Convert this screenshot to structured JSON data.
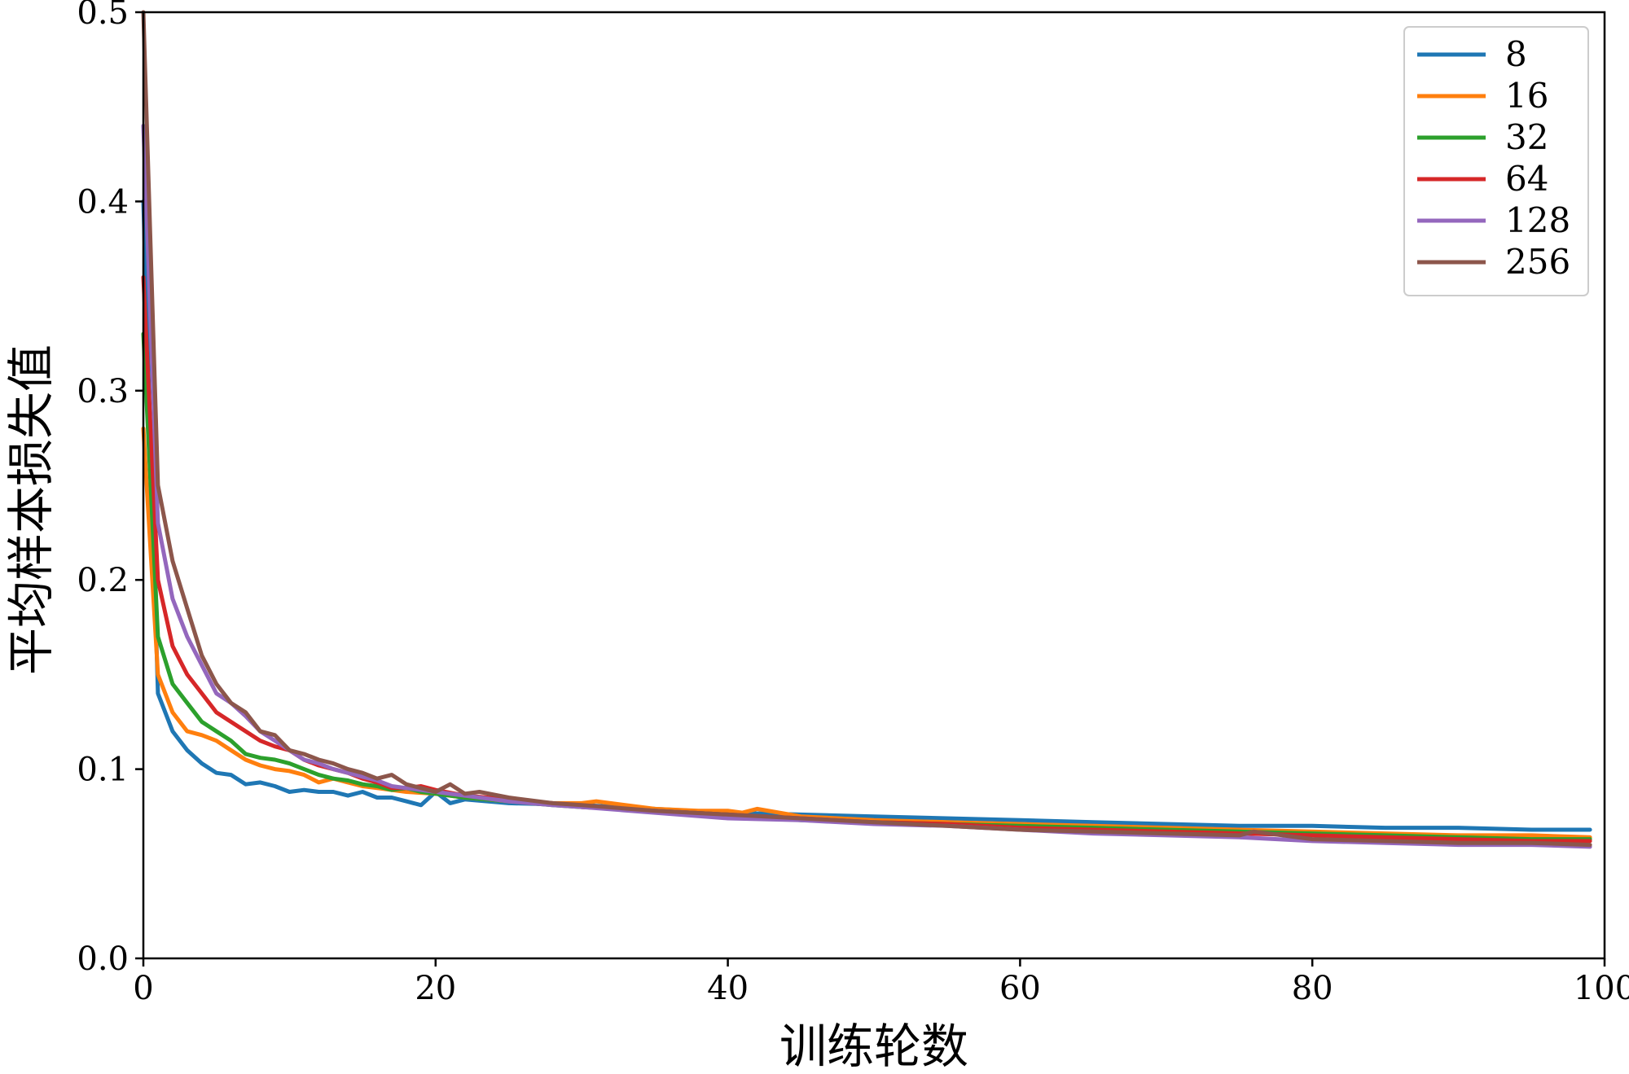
{
  "chart_data": {
    "type": "line",
    "title": "",
    "xlabel": "训练轮数",
    "ylabel": "平均样本损失值",
    "xlim": [
      0,
      100
    ],
    "ylim": [
      0,
      0.5
    ],
    "xticks": [
      0,
      20,
      40,
      60,
      80,
      100
    ],
    "yticks": [
      0.0,
      0.1,
      0.2,
      0.3,
      0.4,
      0.5
    ],
    "xtick_labels": [
      "0",
      "20",
      "40",
      "60",
      "80",
      "100"
    ],
    "ytick_labels": [
      "0.0",
      "0.1",
      "0.2",
      "0.3",
      "0.4",
      "0.5"
    ],
    "grid": false,
    "legend_position": "top-right",
    "series": [
      {
        "name": "8",
        "color": "#1f77b4",
        "points": [
          [
            0,
            0.4
          ],
          [
            1,
            0.14
          ],
          [
            2,
            0.12
          ],
          [
            3,
            0.11
          ],
          [
            4,
            0.103
          ],
          [
            5,
            0.098
          ],
          [
            6,
            0.097
          ],
          [
            7,
            0.092
          ],
          [
            8,
            0.093
          ],
          [
            9,
            0.091
          ],
          [
            10,
            0.088
          ],
          [
            11,
            0.089
          ],
          [
            12,
            0.088
          ],
          [
            13,
            0.088
          ],
          [
            14,
            0.086
          ],
          [
            15,
            0.088
          ],
          [
            16,
            0.085
          ],
          [
            17,
            0.085
          ],
          [
            18,
            0.083
          ],
          [
            19,
            0.081
          ],
          [
            20,
            0.088
          ],
          [
            21,
            0.082
          ],
          [
            22,
            0.084
          ],
          [
            25,
            0.082
          ],
          [
            30,
            0.081
          ],
          [
            35,
            0.079
          ],
          [
            40,
            0.077
          ],
          [
            45,
            0.076
          ],
          [
            50,
            0.075
          ],
          [
            55,
            0.074
          ],
          [
            60,
            0.073
          ],
          [
            65,
            0.072
          ],
          [
            70,
            0.071
          ],
          [
            75,
            0.07
          ],
          [
            80,
            0.07
          ],
          [
            85,
            0.069
          ],
          [
            90,
            0.069
          ],
          [
            95,
            0.068
          ],
          [
            99,
            0.068
          ]
        ]
      },
      {
        "name": "16",
        "color": "#ff7f0e",
        "points": [
          [
            0,
            0.28
          ],
          [
            1,
            0.15
          ],
          [
            2,
            0.13
          ],
          [
            3,
            0.12
          ],
          [
            4,
            0.118
          ],
          [
            5,
            0.115
          ],
          [
            6,
            0.11
          ],
          [
            7,
            0.105
          ],
          [
            8,
            0.102
          ],
          [
            9,
            0.1
          ],
          [
            10,
            0.099
          ],
          [
            11,
            0.097
          ],
          [
            12,
            0.093
          ],
          [
            13,
            0.095
          ],
          [
            14,
            0.093
          ],
          [
            15,
            0.091
          ],
          [
            16,
            0.09
          ],
          [
            17,
            0.089
          ],
          [
            18,
            0.088
          ],
          [
            20,
            0.087
          ],
          [
            22,
            0.085
          ],
          [
            25,
            0.083
          ],
          [
            28,
            0.082
          ],
          [
            30,
            0.082
          ],
          [
            31,
            0.083
          ],
          [
            35,
            0.079
          ],
          [
            38,
            0.078
          ],
          [
            40,
            0.078
          ],
          [
            41,
            0.077
          ],
          [
            42,
            0.079
          ],
          [
            45,
            0.075
          ],
          [
            50,
            0.073
          ],
          [
            55,
            0.072
          ],
          [
            60,
            0.071
          ],
          [
            65,
            0.07
          ],
          [
            70,
            0.069
          ],
          [
            75,
            0.068
          ],
          [
            80,
            0.067
          ],
          [
            85,
            0.066
          ],
          [
            90,
            0.065
          ],
          [
            95,
            0.065
          ],
          [
            99,
            0.064
          ]
        ]
      },
      {
        "name": "32",
        "color": "#2ca02c",
        "points": [
          [
            0,
            0.33
          ],
          [
            1,
            0.17
          ],
          [
            2,
            0.145
          ],
          [
            3,
            0.135
          ],
          [
            4,
            0.125
          ],
          [
            5,
            0.12
          ],
          [
            6,
            0.115
          ],
          [
            7,
            0.108
          ],
          [
            8,
            0.106
          ],
          [
            9,
            0.105
          ],
          [
            10,
            0.103
          ],
          [
            11,
            0.1
          ],
          [
            12,
            0.097
          ],
          [
            13,
            0.095
          ],
          [
            14,
            0.094
          ],
          [
            15,
            0.092
          ],
          [
            16,
            0.091
          ],
          [
            17,
            0.089
          ],
          [
            18,
            0.09
          ],
          [
            19,
            0.088
          ],
          [
            20,
            0.087
          ],
          [
            22,
            0.085
          ],
          [
            25,
            0.083
          ],
          [
            28,
            0.081
          ],
          [
            30,
            0.08
          ],
          [
            35,
            0.078
          ],
          [
            40,
            0.076
          ],
          [
            45,
            0.073
          ],
          [
            50,
            0.072
          ],
          [
            55,
            0.071
          ],
          [
            60,
            0.07
          ],
          [
            65,
            0.069
          ],
          [
            70,
            0.068
          ],
          [
            75,
            0.067
          ],
          [
            80,
            0.066
          ],
          [
            85,
            0.065
          ],
          [
            90,
            0.064
          ],
          [
            95,
            0.063
          ],
          [
            99,
            0.063
          ]
        ]
      },
      {
        "name": "64",
        "color": "#d62728",
        "points": [
          [
            0,
            0.36
          ],
          [
            1,
            0.2
          ],
          [
            2,
            0.165
          ],
          [
            3,
            0.15
          ],
          [
            4,
            0.14
          ],
          [
            5,
            0.13
          ],
          [
            6,
            0.125
          ],
          [
            7,
            0.12
          ],
          [
            8,
            0.115
          ],
          [
            9,
            0.112
          ],
          [
            10,
            0.11
          ],
          [
            11,
            0.105
          ],
          [
            12,
            0.102
          ],
          [
            13,
            0.1
          ],
          [
            14,
            0.098
          ],
          [
            15,
            0.095
          ],
          [
            16,
            0.093
          ],
          [
            17,
            0.09
          ],
          [
            18,
            0.09
          ],
          [
            19,
            0.091
          ],
          [
            20,
            0.089
          ],
          [
            22,
            0.086
          ],
          [
            25,
            0.084
          ],
          [
            28,
            0.082
          ],
          [
            30,
            0.08
          ],
          [
            35,
            0.078
          ],
          [
            40,
            0.076
          ],
          [
            45,
            0.074
          ],
          [
            50,
            0.072
          ],
          [
            55,
            0.071
          ],
          [
            60,
            0.069
          ],
          [
            65,
            0.068
          ],
          [
            70,
            0.067
          ],
          [
            75,
            0.066
          ],
          [
            80,
            0.065
          ],
          [
            85,
            0.064
          ],
          [
            90,
            0.063
          ],
          [
            95,
            0.062
          ],
          [
            99,
            0.062
          ]
        ]
      },
      {
        "name": "128",
        "color": "#9467bd",
        "points": [
          [
            0,
            0.44
          ],
          [
            1,
            0.23
          ],
          [
            2,
            0.19
          ],
          [
            3,
            0.17
          ],
          [
            4,
            0.155
          ],
          [
            5,
            0.14
          ],
          [
            6,
            0.135
          ],
          [
            7,
            0.128
          ],
          [
            8,
            0.12
          ],
          [
            9,
            0.115
          ],
          [
            10,
            0.11
          ],
          [
            11,
            0.105
          ],
          [
            12,
            0.103
          ],
          [
            13,
            0.1
          ],
          [
            14,
            0.098
          ],
          [
            15,
            0.096
          ],
          [
            16,
            0.094
          ],
          [
            17,
            0.091
          ],
          [
            18,
            0.09
          ],
          [
            20,
            0.088
          ],
          [
            22,
            0.086
          ],
          [
            25,
            0.083
          ],
          [
            28,
            0.081
          ],
          [
            30,
            0.08
          ],
          [
            35,
            0.077
          ],
          [
            40,
            0.074
          ],
          [
            45,
            0.073
          ],
          [
            50,
            0.071
          ],
          [
            55,
            0.07
          ],
          [
            60,
            0.068
          ],
          [
            65,
            0.066
          ],
          [
            70,
            0.065
          ],
          [
            75,
            0.064
          ],
          [
            80,
            0.062
          ],
          [
            85,
            0.061
          ],
          [
            90,
            0.06
          ],
          [
            95,
            0.06
          ],
          [
            99,
            0.059
          ]
        ]
      },
      {
        "name": "256",
        "color": "#8c564b",
        "points": [
          [
            0,
            0.5
          ],
          [
            1,
            0.25
          ],
          [
            2,
            0.21
          ],
          [
            3,
            0.185
          ],
          [
            4,
            0.16
          ],
          [
            5,
            0.145
          ],
          [
            6,
            0.135
          ],
          [
            7,
            0.13
          ],
          [
            8,
            0.12
          ],
          [
            9,
            0.118
          ],
          [
            10,
            0.11
          ],
          [
            11,
            0.108
          ],
          [
            12,
            0.105
          ],
          [
            13,
            0.103
          ],
          [
            14,
            0.1
          ],
          [
            15,
            0.098
          ],
          [
            16,
            0.095
          ],
          [
            17,
            0.097
          ],
          [
            18,
            0.092
          ],
          [
            19,
            0.09
          ],
          [
            20,
            0.088
          ],
          [
            21,
            0.092
          ],
          [
            22,
            0.087
          ],
          [
            23,
            0.088
          ],
          [
            25,
            0.085
          ],
          [
            28,
            0.082
          ],
          [
            30,
            0.081
          ],
          [
            35,
            0.078
          ],
          [
            40,
            0.076
          ],
          [
            45,
            0.074
          ],
          [
            50,
            0.072
          ],
          [
            55,
            0.07
          ],
          [
            60,
            0.068
          ],
          [
            65,
            0.067
          ],
          [
            70,
            0.066
          ],
          [
            75,
            0.065
          ],
          [
            76,
            0.067
          ],
          [
            80,
            0.063
          ],
          [
            85,
            0.062
          ],
          [
            90,
            0.061
          ],
          [
            95,
            0.061
          ],
          [
            99,
            0.06
          ]
        ]
      }
    ]
  }
}
